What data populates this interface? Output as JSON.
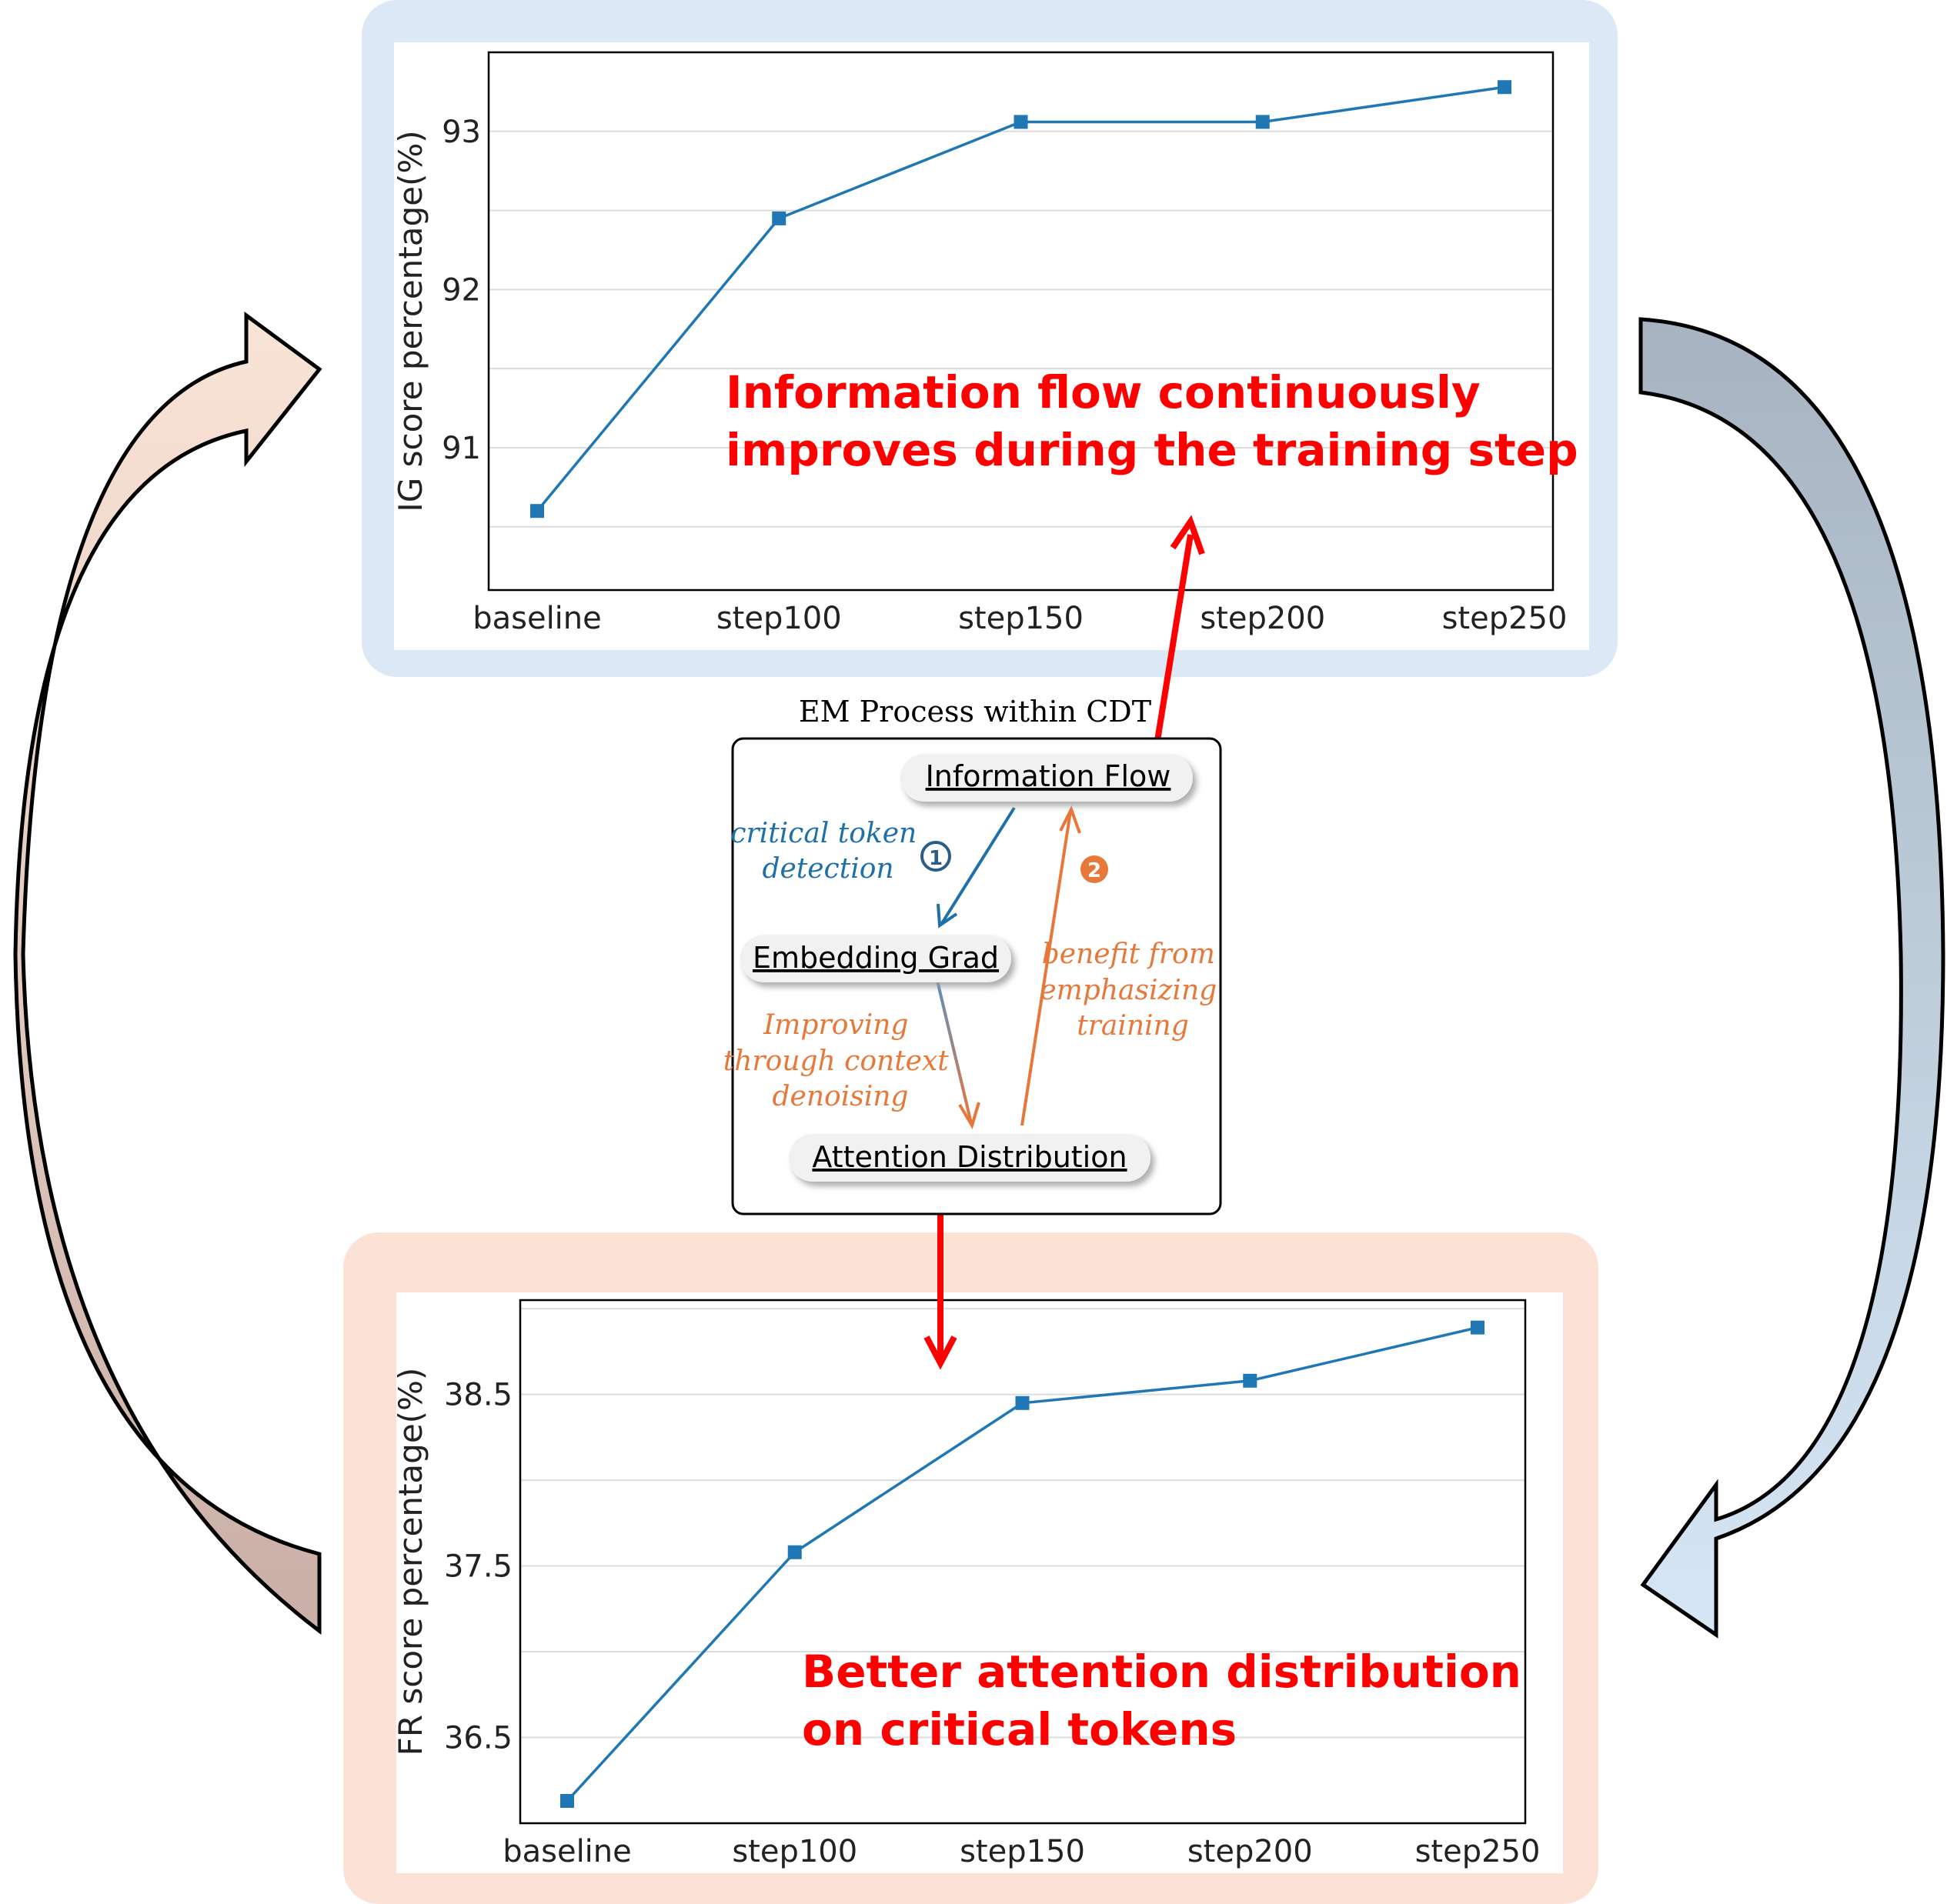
{
  "colors": {
    "series": "#1f77b4",
    "highlight_text": "#ff0000",
    "top_panel_bg": "#dce8f5",
    "bottom_panel_bg": "#fbe2d5",
    "step1_blue": "#1f6fa8",
    "step2_orange": "#e8773a",
    "left_arrow_top": "#fae4d6",
    "left_arrow_bottom": "#c9afa7",
    "right_arrow_top": "#a7b3c0",
    "right_arrow_bottom": "#d6e6f5"
  },
  "icons": {
    "left_cycle_arrow": "curved-up-arrow",
    "right_cycle_arrow": "curved-down-arrow",
    "em_to_top_arrow": "red-up-arrow",
    "em_to_bottom_arrow": "red-down-arrow"
  },
  "chart_data": [
    {
      "type": "line",
      "title": "",
      "xlabel": "",
      "ylabel": "IG score percentage(%)",
      "categories": [
        "baseline",
        "step100",
        "step150",
        "step200",
        "step250"
      ],
      "series": [
        {
          "values": [
            90.6,
            92.45,
            93.06,
            93.06,
            93.28
          ]
        }
      ],
      "ylim": [
        90.1,
        93.5
      ],
      "yticks": [
        91,
        92,
        93
      ],
      "ytick_labels": [
        "91",
        "92",
        "93"
      ],
      "grid": true,
      "marker": "square",
      "annotation": [
        "Information flow continuously",
        "improves during the training step"
      ]
    },
    {
      "type": "line",
      "title": "",
      "xlabel": "",
      "ylabel": "FR score percentage(%)",
      "categories": [
        "baseline",
        "step100",
        "step150",
        "step200",
        "step250"
      ],
      "series": [
        {
          "values": [
            36.13,
            37.58,
            38.45,
            38.58,
            38.89
          ]
        }
      ],
      "ylim": [
        36.0,
        39.05
      ],
      "yticks": [
        36.5,
        37.5,
        38.5
      ],
      "ytick_labels": [
        "36.5",
        "37.5",
        "38.5"
      ],
      "grid": true,
      "marker": "square",
      "annotation": [
        "Better attention distribution",
        "on critical tokens"
      ]
    }
  ],
  "em_process": {
    "title": "EM Process within CDT",
    "nodes": {
      "information_flow": "Information Flow",
      "embedding_grad": "Embedding Grad",
      "attention_distribution": "Attention Distribution"
    },
    "edge_labels": {
      "critical_token_detection": [
        "critical token",
        "detection"
      ],
      "improving_context_denoising": [
        "Improving",
        "through context",
        "denoising"
      ],
      "benefit_emphasizing_training": [
        "benefit from",
        "emphasizing",
        "training"
      ]
    },
    "step_markers": [
      "1",
      "2"
    ]
  }
}
